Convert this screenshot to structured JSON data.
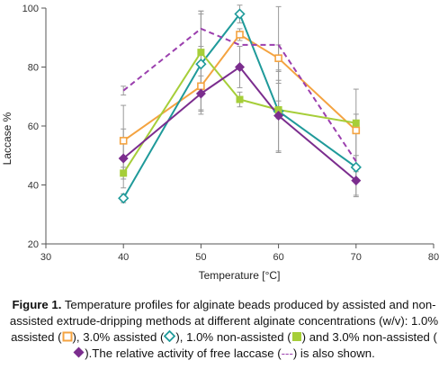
{
  "chart_data": {
    "type": "line",
    "xlabel": "Temperature [°C]",
    "ylabel": "Laccase %",
    "xlim": [
      30,
      80
    ],
    "ylim": [
      20,
      100
    ],
    "xticks": [
      30,
      40,
      50,
      60,
      70,
      80
    ],
    "yticks": [
      20,
      40,
      60,
      80,
      100
    ],
    "grid": false,
    "x": [
      40,
      50,
      55,
      60,
      70
    ],
    "series": [
      {
        "name": "1.0% assisted",
        "color": "#f4a340",
        "marker": "square-open",
        "dash": false,
        "values": [
          55,
          73.5,
          91,
          83,
          58.5
        ],
        "err": [
          12,
          8,
          2,
          4.5,
          14
        ]
      },
      {
        "name": "3.0% assisted",
        "color": "#1f9a9a",
        "marker": "diamond-open",
        "dash": false,
        "values": [
          35.5,
          81,
          98,
          65,
          46
        ],
        "err": [
          1.5,
          17,
          3,
          14,
          4
        ]
      },
      {
        "name": "1.0% non-assisted",
        "color": "#a6ce39",
        "marker": "square-filled",
        "dash": false,
        "values": [
          44,
          85,
          69,
          65.5,
          61
        ],
        "err": [
          2,
          14,
          2.5,
          3,
          3
        ]
      },
      {
        "name": "3.0% non-assisted",
        "color": "#7b2d8e",
        "marker": "diamond-filled",
        "dash": false,
        "values": [
          49,
          71,
          80,
          63.5,
          41.5
        ],
        "err": [
          10,
          6,
          7,
          12,
          5
        ]
      },
      {
        "name": "free laccase",
        "color": "#9b3fae",
        "marker": "none",
        "dash": true,
        "values": [
          72,
          93,
          87.5,
          87.5,
          48
        ],
        "err": [
          1.5,
          6,
          0,
          13,
          12
        ]
      }
    ]
  },
  "caption": {
    "label": "Figure 1.",
    "text1": " Temperature profiles for alginate beads produced by assisted and non-assisted extrude-dripping methods at different alginate concentrations (w/v): 1.0% assisted (",
    "text2": "), 3.0% assisted (",
    "text3": "), 1.0% non-assisted (",
    "text4": ") and 3.0% non-assisted (",
    "text5": ").The relative activity of free laccase (",
    "free_symbol": "---",
    "text6": ") is also shown."
  }
}
